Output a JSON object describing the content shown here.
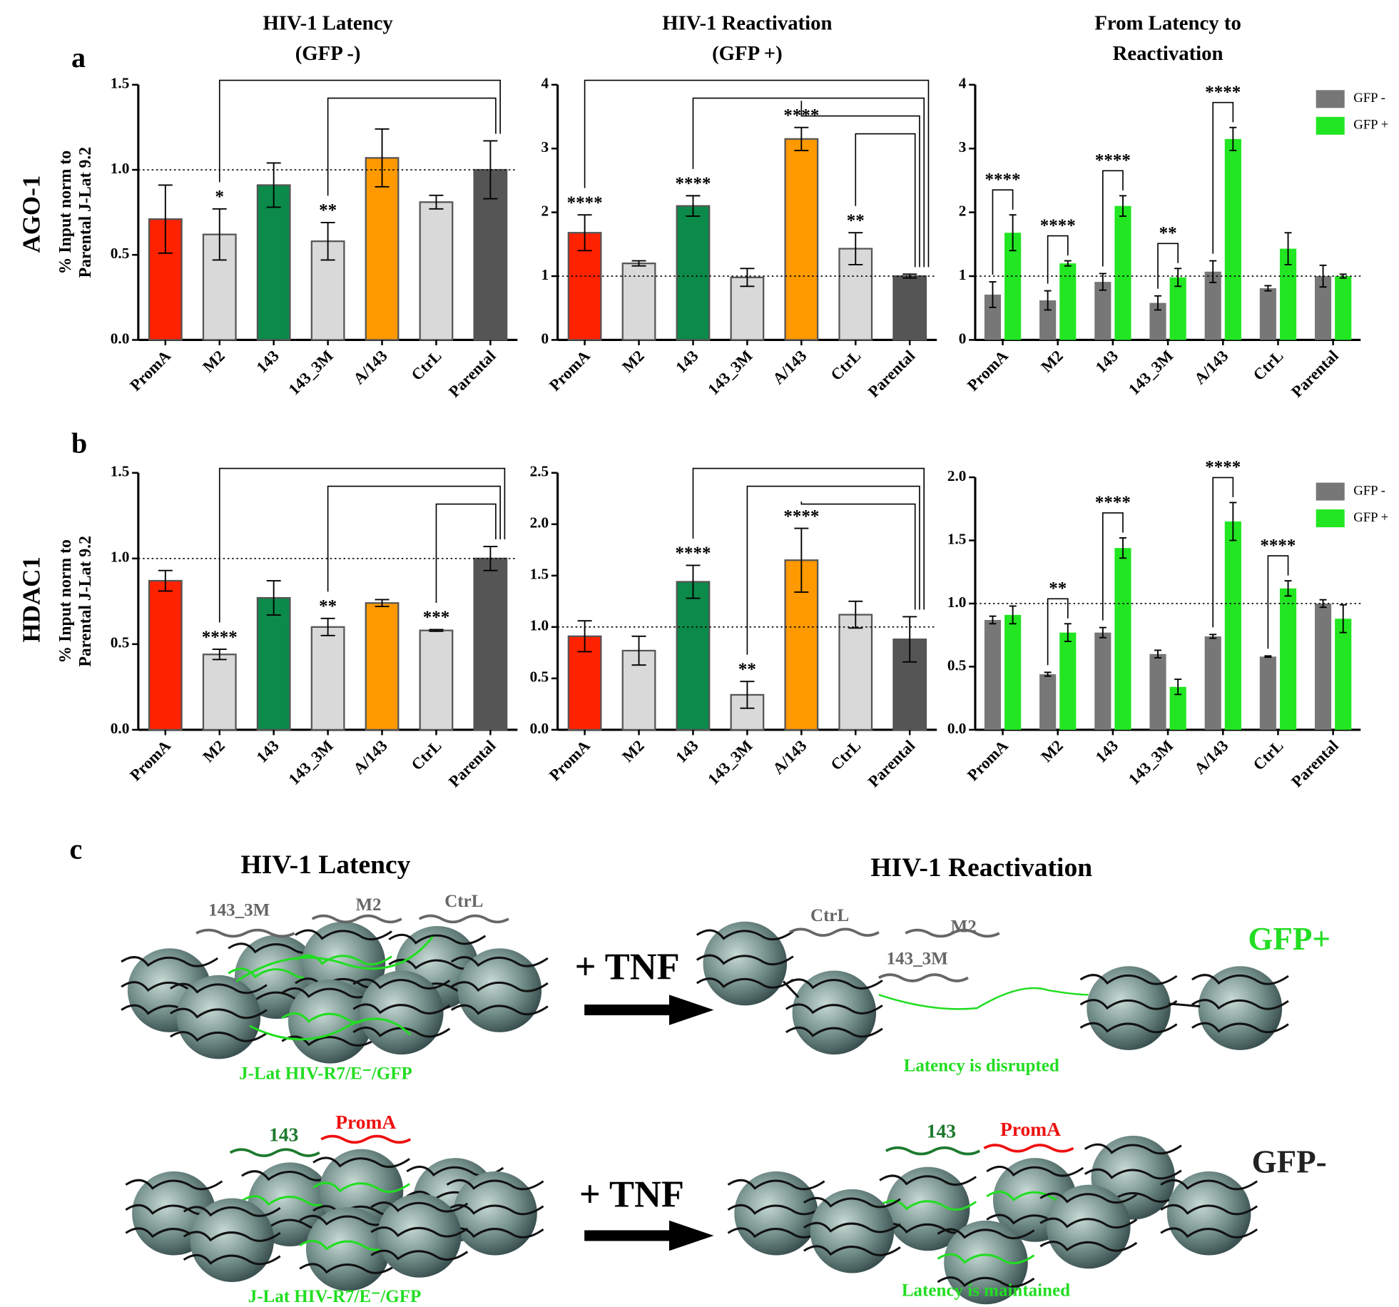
{
  "figure": {
    "panel_labels": [
      "a",
      "b",
      "c"
    ],
    "row_labels": [
      "AGO-1",
      "HDAC1"
    ]
  },
  "chart_data": [
    {
      "type": "bar",
      "title": [
        "HIV-1 Latency",
        "(GFP -)"
      ],
      "ylabel": [
        "% Input  norm to",
        "Parental J-Lat 9.2"
      ],
      "categories": [
        "PromA",
        "M2",
        "143",
        "143_3M",
        "A/143",
        "CtrL",
        "Parental"
      ],
      "values": [
        0.71,
        0.62,
        0.91,
        0.58,
        1.07,
        0.81,
        1.0
      ],
      "errors": [
        0.2,
        0.15,
        0.13,
        0.11,
        0.17,
        0.04,
        0.17
      ],
      "colors": [
        "#ff2200",
        "#d9d9d9",
        "#0b8a4a",
        "#d9d9d9",
        "#ff9900",
        "#d9d9d9",
        "#555555"
      ],
      "significance": [
        null,
        "*",
        null,
        "**",
        null,
        null,
        null
      ],
      "comparisons": [
        [
          "M2",
          "Parental"
        ],
        [
          "143_3M",
          "Parental"
        ]
      ],
      "ylim": [
        0,
        1.5
      ],
      "yticks": [
        {
          "value": 0,
          "label": "0.0"
        },
        0.5,
        {
          "value": 1,
          "label": "1.0"
        },
        1.5
      ],
      "reference_line": 1
    },
    {
      "type": "bar",
      "title": [
        "HIV-1 Reactivation",
        "(GFP +)"
      ],
      "categories": [
        "PromA",
        "M2",
        "143",
        "143_3M",
        "A/143",
        "CtrL",
        "Parental"
      ],
      "values": [
        1.68,
        1.2,
        2.1,
        0.98,
        3.15,
        1.43,
        1.0
      ],
      "errors": [
        0.28,
        0.04,
        0.16,
        0.14,
        0.18,
        0.25,
        0.03
      ],
      "colors": [
        "#ff2200",
        "#d9d9d9",
        "#0b8a4a",
        "#d9d9d9",
        "#ff9900",
        "#d9d9d9",
        "#555555"
      ],
      "significance": [
        "****",
        null,
        "****",
        null,
        "****",
        "**",
        null
      ],
      "comparisons": [
        [
          "PromA",
          "Parental"
        ],
        [
          "143",
          "Parental"
        ],
        [
          "A/143",
          "Parental"
        ],
        [
          "CtrL",
          "Parental"
        ]
      ],
      "ylim": [
        0,
        4
      ],
      "yticks": [
        0,
        1,
        2,
        3,
        4
      ],
      "reference_line": 1
    },
    {
      "type": "grouped_bar",
      "title": [
        "From Latency to",
        "Reactivation"
      ],
      "categories": [
        "PromA",
        "M2",
        "143",
        "143_3M",
        "A/143",
        "CtrL",
        "Parental"
      ],
      "series": [
        {
          "name": "GFP -",
          "color": "#777777",
          "values": [
            0.71,
            0.62,
            0.91,
            0.58,
            1.07,
            0.81,
            1.0
          ],
          "errors": [
            0.2,
            0.15,
            0.13,
            0.11,
            0.17,
            0.04,
            0.17
          ]
        },
        {
          "name": "GFP +",
          "color": "#22e622",
          "values": [
            1.68,
            1.2,
            2.1,
            0.98,
            3.15,
            1.43,
            1.0
          ],
          "errors": [
            0.28,
            0.04,
            0.16,
            0.14,
            0.18,
            0.25,
            0.03
          ]
        }
      ],
      "significance": [
        "****",
        "****",
        "****",
        "**",
        "****",
        null,
        null
      ],
      "legend": "top-right",
      "ylim": [
        0,
        4
      ],
      "yticks": [
        0,
        1,
        2,
        3,
        4
      ],
      "reference_line": 1
    },
    {
      "type": "bar",
      "ylabel": [
        "% Input  norm to",
        "Parental J-Lat 9.2"
      ],
      "categories": [
        "PromA",
        "M2",
        "143",
        "143_3M",
        "A/143",
        "CtrL",
        "Parental"
      ],
      "values": [
        0.87,
        0.44,
        0.77,
        0.6,
        0.74,
        0.58,
        1.0
      ],
      "errors": [
        0.06,
        0.03,
        0.1,
        0.05,
        0.02,
        0.005,
        0.07
      ],
      "colors": [
        "#ff2200",
        "#d9d9d9",
        "#0b8a4a",
        "#d9d9d9",
        "#ff9900",
        "#d9d9d9",
        "#555555"
      ],
      "significance": [
        null,
        "****",
        null,
        "**",
        null,
        "***",
        null
      ],
      "comparisons": [
        [
          "M2",
          "Parental"
        ],
        [
          "143_3M",
          "Parental"
        ],
        [
          "CtrL",
          "Parental"
        ]
      ],
      "ylim": [
        0,
        1.5
      ],
      "yticks": [
        {
          "value": 0,
          "label": "0.0"
        },
        0.5,
        {
          "value": 1,
          "label": "1.0"
        },
        1.5
      ],
      "reference_line": 1
    },
    {
      "type": "bar",
      "categories": [
        "PromA",
        "M2",
        "143",
        "143_3M",
        "A/143",
        "CtrL",
        "Parental"
      ],
      "values": [
        0.91,
        0.77,
        1.44,
        0.34,
        1.65,
        1.12,
        0.88
      ],
      "errors": [
        0.15,
        0.14,
        0.16,
        0.13,
        0.31,
        0.13,
        0.22
      ],
      "colors": [
        "#ff2200",
        "#d9d9d9",
        "#0b8a4a",
        "#d9d9d9",
        "#ff9900",
        "#d9d9d9",
        "#555555"
      ],
      "significance": [
        null,
        null,
        "****",
        "**",
        "****",
        null,
        null
      ],
      "comparisons": [
        [
          "143",
          "Parental"
        ],
        [
          "143_3M",
          "Parental"
        ],
        [
          "A/143",
          "Parental"
        ]
      ],
      "ylim": [
        0,
        2.5
      ],
      "yticks": [
        {
          "value": 0,
          "label": "0.0"
        },
        0.5,
        {
          "value": 1,
          "label": "1.0"
        },
        1.5,
        {
          "value": 2,
          "label": "2.0"
        },
        2.5
      ],
      "reference_line": 1
    },
    {
      "type": "grouped_bar",
      "categories": [
        "PromA",
        "M2",
        "143",
        "143_3M",
        "A/143",
        "CtrL",
        "Parental"
      ],
      "series": [
        {
          "name": "GFP -",
          "color": "#777777",
          "values": [
            0.87,
            0.44,
            0.77,
            0.6,
            0.74,
            0.58,
            1.0
          ],
          "errors": [
            0.03,
            0.015,
            0.04,
            0.03,
            0.015,
            0.005,
            0.03
          ]
        },
        {
          "name": "GFP +",
          "color": "#22e622",
          "values": [
            0.91,
            0.77,
            1.44,
            0.34,
            1.65,
            1.12,
            0.88
          ],
          "errors": [
            0.07,
            0.07,
            0.08,
            0.06,
            0.15,
            0.06,
            0.11
          ]
        }
      ],
      "significance": [
        null,
        "**",
        "****",
        null,
        "****",
        "****",
        null
      ],
      "legend": "top-right",
      "ylim": [
        0,
        2
      ],
      "yticks": [
        {
          "value": 0,
          "label": "0.0"
        },
        0.5,
        {
          "value": 1,
          "label": "1.0"
        },
        1.5,
        {
          "value": 2,
          "label": "2.0"
        }
      ],
      "reference_line": 1
    }
  ],
  "diagram": {
    "left_title": "HIV-1 Latency",
    "right_title": "HIV-1 Reactivation",
    "top": {
      "left_rnas": [
        "143_3M",
        "M2",
        "CtrL"
      ],
      "right_rnas": [
        "CtrL",
        "M2",
        "143_3M"
      ],
      "treatment": "+ TNF",
      "cell_line": "J-Lat HIV-R7/E⁻/GFP",
      "outcome": "Latency is disrupted",
      "state": "GFP+"
    },
    "bottom": {
      "left_rnas": [
        "143",
        "PromA"
      ],
      "right_rnas": [
        "143",
        "PromA"
      ],
      "treatment": "+ TNF",
      "cell_line": "J-Lat HIV-R7/E⁻/GFP",
      "outcome": "Latency is maintained",
      "state": "GFP-"
    }
  }
}
